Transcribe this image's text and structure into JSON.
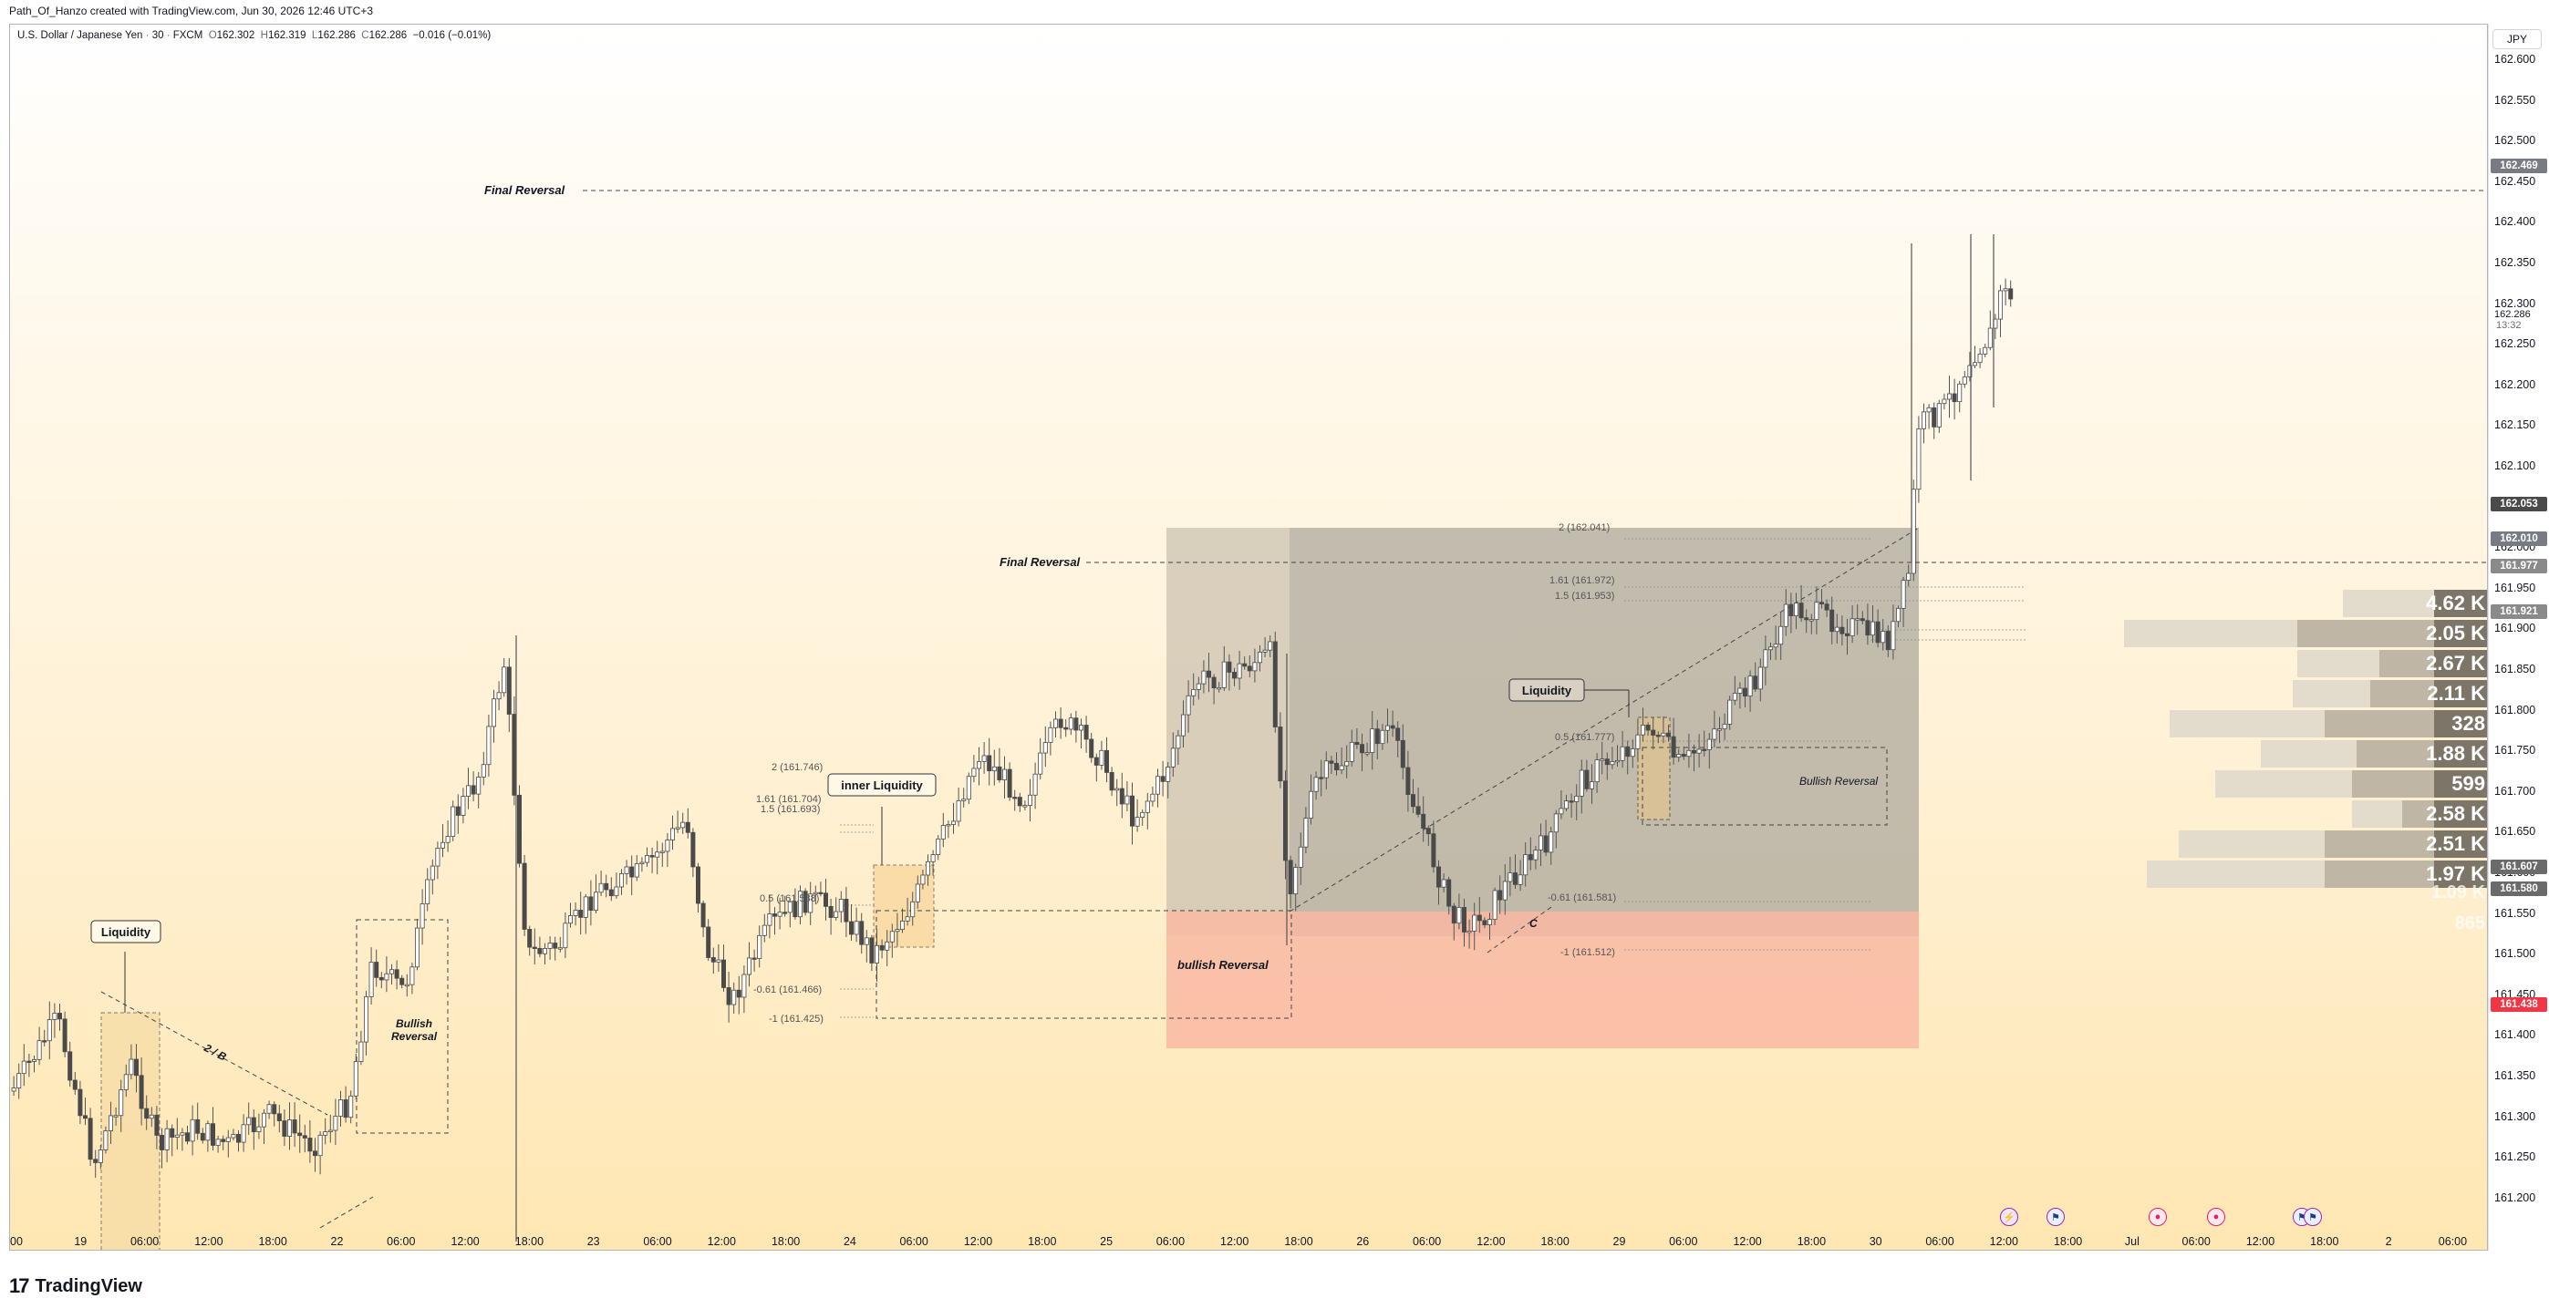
{
  "header": {
    "credit": "Path_Of_Hanzo created with TradingView.com, Jun 30, 2026 12:46 UTC+3"
  },
  "legend": {
    "symbol": "U.S. Dollar / Japanese Yen",
    "interval": "30",
    "exchange": "FXCM",
    "open_label": "O",
    "open": "162.302",
    "high_label": "H",
    "high": "162.319",
    "low_label": "L",
    "low": "162.286",
    "close_label": "C",
    "close": "162.286",
    "change": "−0.016 (−0.01%)"
  },
  "price_axis": {
    "currency": "JPY",
    "ticks": [
      "162.600",
      "162.550",
      "162.500",
      "162.450",
      "162.400",
      "162.350",
      "162.300",
      "162.250",
      "162.200",
      "162.150",
      "162.100",
      "162.050",
      "162.000",
      "161.950",
      "161.900",
      "161.850",
      "161.800",
      "161.750",
      "161.700",
      "161.650",
      "161.600",
      "161.550",
      "161.500",
      "161.450",
      "161.400",
      "161.350",
      "161.300",
      "161.250",
      "161.200"
    ],
    "badges": [
      {
        "text": "162.469",
        "color": "#787b86"
      },
      {
        "text": "162.053",
        "color": "#4a4a4a"
      },
      {
        "text": "162.010",
        "color": "#787b86"
      },
      {
        "text": "161.977",
        "color": "#8a8a8a"
      },
      {
        "text": "161.921",
        "color": "#8a8a8a"
      },
      {
        "text": "161.607",
        "color": "#6a6a6a"
      },
      {
        "text": "161.580",
        "color": "#6a6a6a"
      },
      {
        "text": "161.438",
        "color": "#f23645"
      }
    ],
    "last_price": "162.286",
    "countdown": "13:32"
  },
  "time_axis": {
    "ticks": [
      "00",
      "19",
      "06:00",
      "12:00",
      "18:00",
      "22",
      "06:00",
      "12:00",
      "18:00",
      "23",
      "06:00",
      "12:00",
      "18:00",
      "24",
      "06:00",
      "12:00",
      "18:00",
      "25",
      "06:00",
      "12:00",
      "18:00",
      "26",
      "06:00",
      "12:00",
      "18:00",
      "29",
      "06:00",
      "12:00",
      "18:00",
      "30",
      "06:00",
      "12:00",
      "18:00",
      "Jul",
      "06:00",
      "12:00",
      "18:00",
      "2",
      "06:00"
    ]
  },
  "annotations": {
    "final_reversal_top": "Final Reversal",
    "final_reversal_mid": "Final Reversal",
    "liquidity_left": "Liquidity",
    "two_b": "2 / B",
    "bullish_reversal_left_1": "Bullish",
    "bullish_reversal_left_2": "Reversal",
    "inner_liquidity": "inner Liquidity",
    "bullish_reversal_pink": "bullish Reversal",
    "liquidity_right": "Liquidity",
    "bullish_reversal_right": "Bullish Reversal",
    "c_mark": "C"
  },
  "fib_left": {
    "f2": "2 (161.746)",
    "f161": "1.61 (161.704)",
    "f15": "1.5 (161.693)",
    "f05": "0.5 (161.588)",
    "fm061": "-0.61 (161.466)",
    "fm1": "-1 (161.425)"
  },
  "fib_right": {
    "f2": "2 (162.041)",
    "f161": "1.61 (161.972)",
    "f15": "1.5 (161.953)",
    "f05": "0.5 (161.777)",
    "fm061": "-0.61 (161.581)",
    "fm1": "-1 (161.512)"
  },
  "volume_profile": {
    "labels": [
      "4.62 K",
      "2.05 K",
      "2.67 K",
      "2.11 K",
      "328",
      "1.88 K",
      "599",
      "2.58 K",
      "2.51 K",
      "1.97 K"
    ],
    "faded_labels": [
      "1.09 K",
      "865"
    ]
  },
  "footer": {
    "brand": "TradingView",
    "mark": "17"
  },
  "colors": {
    "candle": "#555555",
    "pink_zone": "#f9b9a3",
    "grey_zone": "#9e9e9e",
    "accent_red": "#f23645"
  }
}
